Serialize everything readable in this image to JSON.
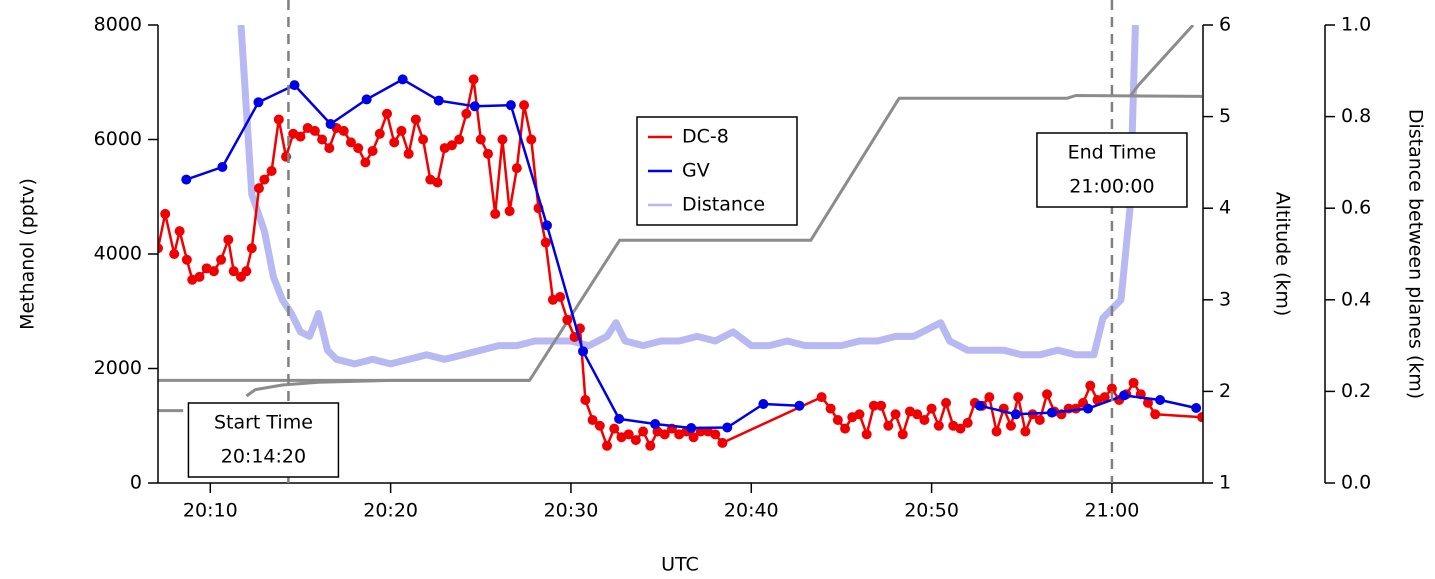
{
  "chart_data": {
    "type": "line",
    "xlabel": "UTC",
    "ylabel": "Methanol (pptv)",
    "y2label": "Altitude (km)",
    "y3label": "Distance between planes (km)",
    "xlim": [
      7.1,
      65.05
    ],
    "xticks": [
      {
        "value": 10,
        "label": "20:10"
      },
      {
        "value": 20,
        "label": "20:20"
      },
      {
        "value": 30,
        "label": "20:30"
      },
      {
        "value": 40,
        "label": "20:40"
      },
      {
        "value": 50,
        "label": "20:50"
      },
      {
        "value": 60,
        "label": "21:00"
      }
    ],
    "ylim": [
      0,
      8000
    ],
    "yticks": [
      0,
      2000,
      4000,
      6000,
      8000
    ],
    "y2lim": [
      1,
      6
    ],
    "y2ticks": [
      1,
      2,
      3,
      4,
      5,
      6
    ],
    "y3lim": [
      0,
      1
    ],
    "y3ticks": [
      {
        "value": 0,
        "label": "0.0"
      },
      0.2,
      0.4,
      0.6,
      0.8,
      {
        "value": 1,
        "label": "1.0"
      }
    ],
    "markers": [
      {
        "x": 14.333,
        "label": [
          "Start Time",
          "20:14:20"
        ]
      },
      {
        "x": 60,
        "label": [
          "End Time",
          "21:00:00"
        ]
      }
    ],
    "series": [
      {
        "name": "Distance",
        "color": "#b8b8f2",
        "axis": "y3",
        "x": [
          11.7,
          12.3,
          13,
          13.5,
          14,
          14.5,
          15,
          15.5,
          16,
          16.5,
          17,
          18,
          19,
          20,
          21,
          22,
          23,
          24,
          25,
          26,
          27,
          28,
          29,
          30,
          31,
          32,
          32.5,
          33,
          34,
          35,
          36,
          37,
          38,
          39,
          40,
          41,
          42,
          43,
          44,
          45,
          46,
          47,
          48,
          49,
          50,
          50.5,
          51,
          52,
          53,
          54,
          55,
          56,
          57,
          58,
          59,
          59.5,
          60,
          60.5,
          61,
          61.3
        ],
        "values": [
          1.0,
          0.63,
          0.55,
          0.45,
          0.4,
          0.37,
          0.33,
          0.32,
          0.37,
          0.29,
          0.27,
          0.26,
          0.27,
          0.26,
          0.27,
          0.28,
          0.27,
          0.28,
          0.29,
          0.3,
          0.3,
          0.31,
          0.31,
          0.31,
          0.3,
          0.32,
          0.35,
          0.31,
          0.3,
          0.31,
          0.31,
          0.32,
          0.31,
          0.33,
          0.3,
          0.3,
          0.31,
          0.3,
          0.3,
          0.3,
          0.31,
          0.31,
          0.32,
          0.32,
          0.34,
          0.35,
          0.31,
          0.29,
          0.29,
          0.29,
          0.28,
          0.28,
          0.29,
          0.28,
          0.28,
          0.36,
          0.38,
          0.4,
          0.6,
          1.0
        ]
      },
      {
        "color": "#8c8c8c",
        "axis": "y2",
        "x": [
          7.1,
          27.7,
          32.7,
          43.3,
          48.2,
          57.5,
          58,
          65
        ],
        "values": [
          2.12,
          2.12,
          3.65,
          3.65,
          5.2,
          5.2,
          5.23,
          5.22
        ]
      },
      {
        "color": "#8c8c8c",
        "axis": "y2",
        "x": [
          7.1,
          8.5,
          null,
          12,
          12.5,
          14,
          16,
          20,
          25,
          27.7,
          null,
          61,
          61.5,
          64.5
        ],
        "values": [
          1.79,
          1.79,
          null,
          1.95,
          2.02,
          2.07,
          2.1,
          2.12,
          2.12,
          2.12,
          null,
          5.22,
          5.35,
          6.0
        ]
      },
      {
        "name": "DC-8",
        "color": "#f00000",
        "axis": "y",
        "marker": true,
        "x": [
          7.1,
          7.5,
          8,
          8.3,
          8.7,
          9,
          9.4,
          9.8,
          10.2,
          10.6,
          11,
          11.3,
          11.7,
          12,
          12.3,
          12.7,
          13,
          13.4,
          13.8,
          14.2,
          14.6,
          15,
          15.4,
          15.8,
          16.2,
          16.6,
          17,
          17.4,
          17.8,
          18.2,
          18.6,
          19,
          19.4,
          19.8,
          20.2,
          20.6,
          21,
          21.4,
          21.8,
          22.2,
          22.6,
          23,
          23.4,
          23.8,
          24.2,
          24.6,
          25,
          25.4,
          25.8,
          26.2,
          26.6,
          27,
          27.4,
          27.8,
          28.2,
          28.6,
          29,
          29.4,
          29.8,
          30.2,
          30.5,
          30.8,
          31.2,
          31.6,
          32,
          32.4,
          32.8,
          33.2,
          33.6,
          34,
          34.4,
          34.8,
          35.2,
          35.6,
          36,
          36.4,
          36.8,
          37.2,
          37.6,
          38,
          38.4,
          43.9,
          44.4,
          44.8,
          45.2,
          45.6,
          46,
          46.4,
          46.8,
          47.2,
          47.6,
          48,
          48.4,
          48.8,
          49.2,
          49.6,
          50,
          50.4,
          50.8,
          51.2,
          51.6,
          52,
          52.4,
          52.8,
          53.2,
          53.6,
          54,
          54.4,
          54.8,
          55.2,
          55.6,
          56,
          56.4,
          56.8,
          57.2,
          57.6,
          58,
          58.4,
          58.8,
          59.2,
          59.6,
          60,
          60.4,
          60.8,
          61.2,
          61.6,
          62,
          62.4,
          65
        ],
        "values": [
          4100,
          4700,
          4000,
          4400,
          3900,
          3550,
          3600,
          3750,
          3700,
          3900,
          4250,
          3700,
          3600,
          3700,
          4100,
          5150,
          5300,
          5450,
          6350,
          5700,
          6100,
          6050,
          6200,
          6150,
          6000,
          5850,
          6200,
          6150,
          5950,
          5850,
          5600,
          5800,
          6100,
          6450,
          5950,
          6150,
          5750,
          6350,
          6000,
          5300,
          5250,
          5850,
          5900,
          6000,
          6450,
          7050,
          6000,
          5750,
          4700,
          6000,
          4750,
          5500,
          6600,
          6000,
          4800,
          4200,
          3200,
          3250,
          2850,
          2550,
          2700,
          1450,
          1100,
          1000,
          650,
          950,
          800,
          850,
          750,
          900,
          650,
          900,
          850,
          950,
          850,
          900,
          800,
          900,
          900,
          850,
          700,
          1500,
          1300,
          1100,
          950,
          1150,
          1200,
          850,
          1350,
          1350,
          1000,
          1200,
          850,
          1250,
          1200,
          1100,
          1300,
          1000,
          1400,
          1000,
          950,
          1050,
          1400,
          1350,
          1500,
          900,
          1300,
          1000,
          1500,
          900,
          1200,
          1100,
          1550,
          1250,
          1200,
          1300,
          1300,
          1400,
          1700,
          1450,
          1500,
          1650,
          1450,
          1550,
          1750,
          1550,
          1400,
          1200,
          1150
        ]
      },
      {
        "name": "GV",
        "color": "#0000e6",
        "axis": "y",
        "marker": true,
        "x": [
          8.67,
          10.67,
          12.67,
          14.67,
          16.67,
          18.67,
          20.67,
          22.67,
          24.67,
          26.67,
          28.67,
          30.67,
          32.67,
          34.67,
          36.67,
          38.67,
          40.67,
          42.67,
          44.67,
          46.67,
          48.67,
          50.67,
          52.67,
          54.67,
          56.67,
          58.67,
          60.67,
          62.67,
          64.67
        ],
        "values": [
          5300,
          5520,
          6650,
          6950,
          6270,
          6700,
          7050,
          6680,
          6580,
          6600,
          4500,
          2300,
          1120,
          1030,
          960,
          970,
          1380,
          1350,
          null,
          null,
          null,
          null,
          1350,
          1200,
          1230,
          1300,
          1530,
          1450,
          1310
        ]
      }
    ],
    "legend": "upper center"
  }
}
